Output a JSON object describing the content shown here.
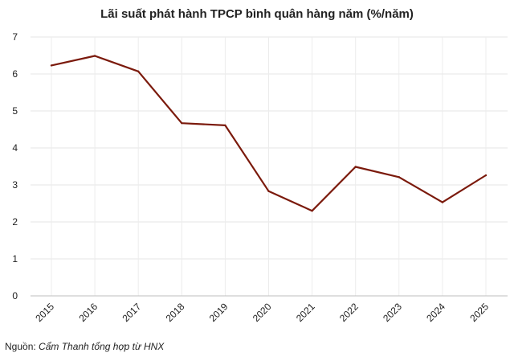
{
  "chart_data": {
    "type": "line",
    "title": "Lãi suất phát hành TPCP bình quân hàng năm (%/năm)",
    "xlabel": "",
    "ylabel": "",
    "x": [
      "2015",
      "2016",
      "2017",
      "2018",
      "2019",
      "2020",
      "2021",
      "2022",
      "2023",
      "2024",
      "2025"
    ],
    "series": [
      {
        "values": [
          6.23,
          6.49,
          6.07,
          4.67,
          4.61,
          2.83,
          2.3,
          3.49,
          3.21,
          2.53,
          3.26
        ]
      }
    ],
    "ylim": [
      0,
      7
    ],
    "yticks": [
      "0",
      "1",
      "2",
      "3",
      "4",
      "5",
      "6",
      "7"
    ],
    "grid": true,
    "legend": "none",
    "line_color": "#7b1a0c"
  },
  "source": {
    "prefix": "Nguồn: ",
    "text": "Cẩm Thanh tổng hợp từ HNX"
  }
}
